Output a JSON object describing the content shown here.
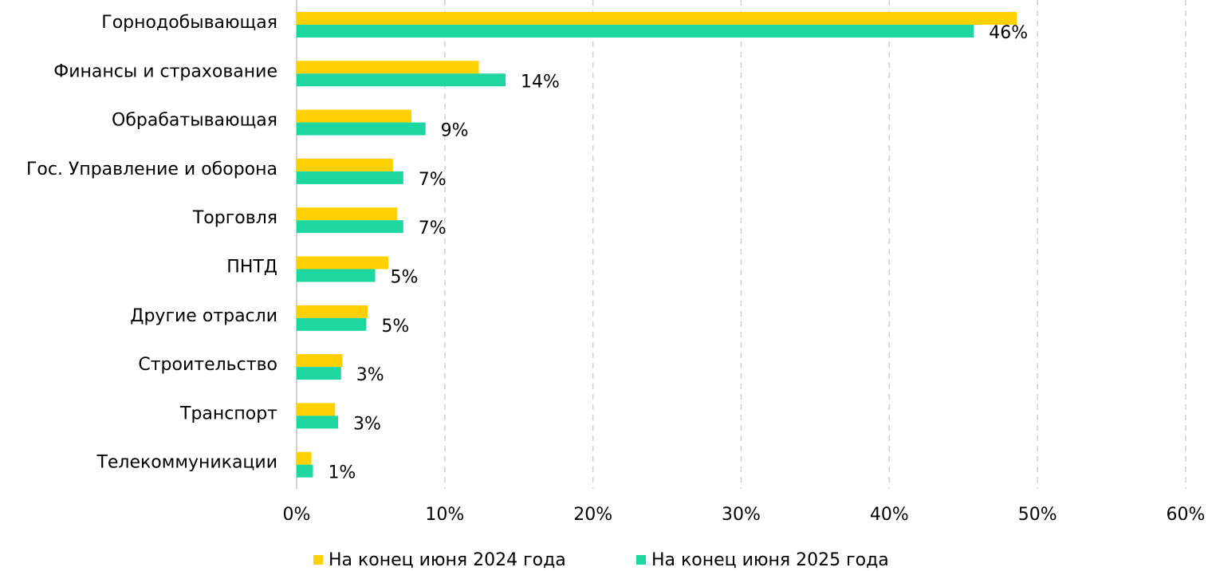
{
  "chart_data": {
    "type": "hbar",
    "categories": [
      "Горнодобывающая",
      "Финансы и страхование",
      "Обрабатывающая",
      "Гос. Управление и оборона",
      "Торговля",
      "ПНТД",
      "Другие отрасли",
      "Строительство",
      "Транспорт",
      "Телекоммуникации"
    ],
    "series": [
      {
        "name": "На конец июня 2024 года",
        "color": "#ffd100",
        "values": [
          48.6,
          12.3,
          7.75,
          6.5,
          6.8,
          6.2,
          4.8,
          3.1,
          2.6,
          1.0
        ]
      },
      {
        "name": "На конец июня 2025 года",
        "color": "#1ed6a0",
        "values": [
          45.7,
          14.1,
          8.7,
          7.2,
          7.2,
          5.3,
          4.7,
          3.0,
          2.8,
          1.1
        ],
        "value_labels": [
          "46%",
          "14%",
          "9%",
          "7%",
          "7%",
          "5%",
          "5%",
          "3%",
          "3%",
          "1%"
        ]
      }
    ],
    "xlim": [
      0,
      60
    ],
    "xticks": [
      {
        "value": 0,
        "label": "0%"
      },
      {
        "value": 10,
        "label": "10%"
      },
      {
        "value": 20,
        "label": "20%"
      },
      {
        "value": 30,
        "label": "30%"
      },
      {
        "value": 40,
        "label": "40%"
      },
      {
        "value": 50,
        "label": "50%"
      },
      {
        "value": 60,
        "label": "60%"
      }
    ],
    "grid": true,
    "legend": "bottom"
  }
}
